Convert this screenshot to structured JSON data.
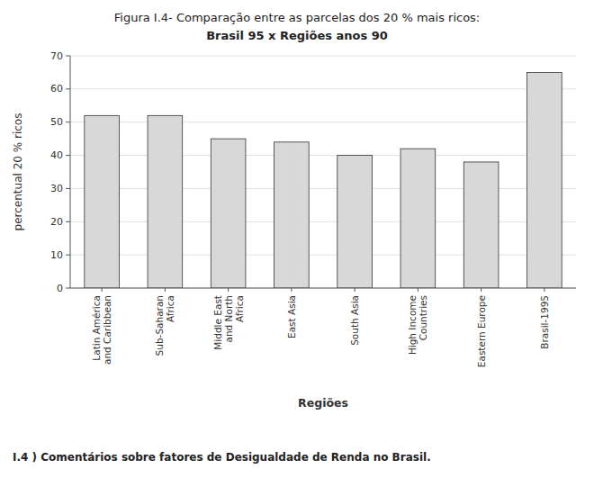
{
  "chart_data": {
    "type": "bar",
    "title": "Figura I.4- Comparação entre as parcelas dos 20 % mais ricos:",
    "subtitle": "Brasil 95 x Regiões anos 90",
    "categories": [
      "Latin América\nand Caribbean",
      "Sub-Saharan\nAfrica",
      "Middle East\nand North\nAfrica",
      "East Asia",
      "South Asia",
      "High Income\nCountries",
      "Eastern Europe",
      "Brasil-1995"
    ],
    "values": [
      52,
      52,
      45,
      44,
      40,
      42,
      38,
      65
    ],
    "xlabel": "Regiões",
    "ylabel": "percentual 20 % ricos",
    "annotations": [
      "I.4 ) Comentários sobre fatores de Desigualdade de Renda no Brasil."
    ],
    "color": "#d8d8d8",
    "ylim": [
      0,
      70
    ],
    "yticks": [
      0,
      10,
      20,
      30,
      40,
      50,
      60,
      70
    ],
    "grid": true
  }
}
